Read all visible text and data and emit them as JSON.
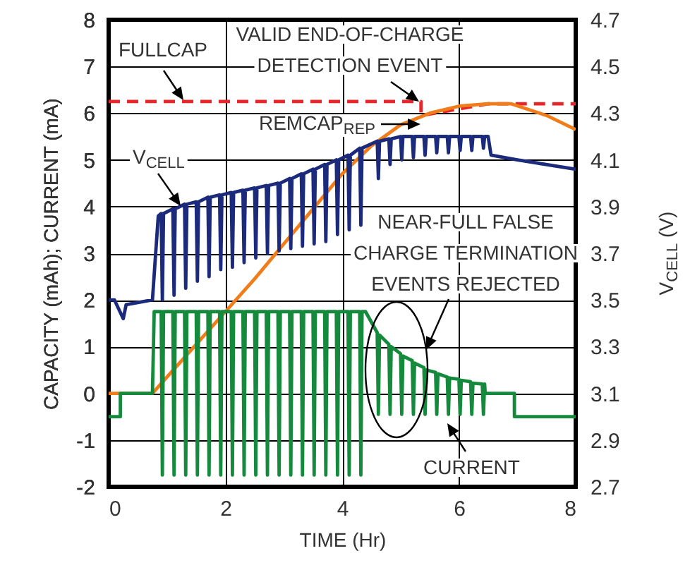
{
  "chart_data": {
    "type": "line",
    "xlabel": "TIME (Hr)",
    "ylabel": "CAPACITY (mAh); CURRENT (mA)",
    "y2label": "V$_{CELL}$ (V)",
    "xlim": [
      0,
      8
    ],
    "xticks": [
      0,
      2,
      4,
      6,
      8
    ],
    "ylim": [
      -2,
      8
    ],
    "yticks": [
      -2,
      -1,
      0,
      1,
      2,
      3,
      4,
      5,
      6,
      7,
      8
    ],
    "y2lim": [
      2.7,
      4.7
    ],
    "y2ticks": [
      2.7,
      2.9,
      3.1,
      3.3,
      3.5,
      3.7,
      3.9,
      4.1,
      4.3,
      4.5,
      4.7
    ],
    "grid": true,
    "annotations": [
      "VALID END-OF-CHARGE DETECTION EVENT",
      "NEAR-FULL FALSE CHARGE TERMINATION EVENTS REJECTED"
    ],
    "series": [
      {
        "name": "FULLCAP",
        "color": "#e8262a",
        "line_style": "dashed",
        "x": [
          0,
          5.35,
          5.35,
          6.5,
          8
        ],
        "values": [
          6.25,
          6.25,
          5.95,
          6.2,
          6.2
        ]
      },
      {
        "name": "REMCAP$_{REP}$",
        "color": "#f07d1a",
        "x": [
          0,
          0.75,
          1,
          1.5,
          2,
          2.5,
          3,
          3.5,
          4,
          4.5,
          5,
          5.5,
          6,
          6.5,
          6.9,
          7.5,
          8
        ],
        "values": [
          0,
          0,
          0.35,
          1.05,
          1.75,
          2.45,
          3.2,
          3.95,
          4.7,
          5.3,
          5.75,
          6.0,
          6.15,
          6.2,
          6.2,
          5.95,
          5.65
        ]
      },
      {
        "name": "V$_{CELL}$",
        "color": "#1b2a7a",
        "axis": "y2",
        "x": [
          0,
          0.1,
          0.25,
          0.3,
          0.75,
          0.85,
          0.9,
          0.92,
          0.94,
          1.1,
          1.12,
          1.14,
          1.3,
          1.32,
          1.34,
          1.5,
          1.52,
          1.54,
          1.7,
          1.72,
          1.74,
          1.9,
          1.92,
          1.94,
          2.1,
          2.12,
          2.14,
          2.3,
          2.32,
          2.34,
          2.5,
          2.52,
          2.54,
          2.7,
          2.72,
          2.74,
          2.9,
          2.92,
          2.94,
          3.1,
          3.12,
          3.14,
          3.3,
          3.32,
          3.34,
          3.5,
          3.52,
          3.54,
          3.7,
          3.72,
          3.74,
          3.9,
          3.92,
          3.94,
          4.1,
          4.12,
          4.14,
          4.3,
          4.32,
          4.34,
          4.6,
          4.62,
          4.64,
          4.8,
          4.82,
          4.84,
          5.0,
          5.02,
          5.04,
          5.2,
          5.22,
          5.24,
          5.4,
          5.42,
          5.44,
          5.6,
          5.62,
          5.64,
          5.8,
          5.82,
          5.84,
          6.0,
          6.02,
          6.04,
          6.2,
          6.22,
          6.24,
          6.4,
          6.42,
          6.44,
          6.5,
          6.55,
          7,
          8
        ],
        "values": [
          3.5,
          3.5,
          3.42,
          3.48,
          3.5,
          3.86,
          3.87,
          3.5,
          3.87,
          3.89,
          3.52,
          3.89,
          3.91,
          3.55,
          3.91,
          3.92,
          3.58,
          3.92,
          3.94,
          3.6,
          3.94,
          3.95,
          3.63,
          3.95,
          3.96,
          3.64,
          3.96,
          3.97,
          3.66,
          3.97,
          3.98,
          3.68,
          3.98,
          3.99,
          3.7,
          3.99,
          4.0,
          3.71,
          4.0,
          4.02,
          3.72,
          4.02,
          4.04,
          3.73,
          4.04,
          4.06,
          3.74,
          4.06,
          4.08,
          3.75,
          4.08,
          4.1,
          3.78,
          4.1,
          4.12,
          3.8,
          4.12,
          4.15,
          3.82,
          4.15,
          4.18,
          4.02,
          4.18,
          4.19,
          4.08,
          4.19,
          4.2,
          4.1,
          4.2,
          4.2,
          4.11,
          4.2,
          4.2,
          4.12,
          4.2,
          4.2,
          4.13,
          4.2,
          4.2,
          4.13,
          4.2,
          4.2,
          4.14,
          4.2,
          4.2,
          4.14,
          4.2,
          4.2,
          4.15,
          4.2,
          4.2,
          4.12,
          4.1,
          4.06
        ]
      },
      {
        "name": "CURRENT",
        "color": "#158a3c",
        "x": [
          0,
          0.2,
          0.2,
          0.75,
          0.78,
          0.9,
          0.92,
          0.94,
          1.1,
          1.12,
          1.14,
          1.3,
          1.32,
          1.34,
          1.5,
          1.52,
          1.54,
          1.7,
          1.72,
          1.74,
          1.9,
          1.92,
          1.94,
          2.1,
          2.12,
          2.14,
          2.3,
          2.32,
          2.34,
          2.5,
          2.52,
          2.54,
          2.7,
          2.72,
          2.74,
          2.9,
          2.92,
          2.94,
          3.1,
          3.12,
          3.14,
          3.3,
          3.32,
          3.34,
          3.5,
          3.52,
          3.54,
          3.7,
          3.72,
          3.74,
          3.9,
          3.92,
          3.94,
          4.1,
          4.12,
          4.14,
          4.3,
          4.32,
          4.34,
          4.4,
          4.6,
          4.62,
          4.64,
          4.8,
          4.82,
          4.84,
          5.0,
          5.02,
          5.04,
          5.2,
          5.22,
          5.24,
          5.4,
          5.42,
          5.44,
          5.6,
          5.62,
          5.64,
          5.8,
          5.82,
          5.84,
          6.0,
          6.02,
          6.04,
          6.2,
          6.22,
          6.24,
          6.4,
          6.42,
          6.44,
          6.45,
          6.95,
          6.95,
          8
        ],
        "values": [
          -0.5,
          -0.5,
          0,
          0,
          1.75,
          1.75,
          -1.75,
          1.75,
          1.75,
          -1.75,
          1.75,
          1.75,
          -1.75,
          1.75,
          1.75,
          -1.75,
          1.75,
          1.75,
          -1.75,
          1.75,
          1.75,
          -1.75,
          1.75,
          1.75,
          -1.75,
          1.75,
          1.75,
          -1.75,
          1.75,
          1.75,
          -1.75,
          1.75,
          1.75,
          -1.75,
          1.75,
          1.75,
          -1.75,
          1.75,
          1.75,
          -1.75,
          1.75,
          1.75,
          -1.75,
          1.75,
          1.75,
          -1.75,
          1.75,
          1.75,
          -1.75,
          1.75,
          1.75,
          -1.75,
          1.75,
          1.75,
          -1.75,
          1.75,
          1.75,
          -1.75,
          1.75,
          1.75,
          1.3,
          -0.45,
          1.25,
          1.05,
          -0.45,
          1.0,
          0.85,
          -0.45,
          0.8,
          0.7,
          -0.45,
          0.65,
          0.55,
          -0.45,
          0.5,
          0.45,
          -0.45,
          0.42,
          0.35,
          -0.45,
          0.33,
          0.3,
          -0.45,
          0.28,
          0.25,
          -0.45,
          0.22,
          0.2,
          -0.45,
          0.2,
          0,
          0,
          -0.5,
          -0.5
        ]
      }
    ]
  }
}
